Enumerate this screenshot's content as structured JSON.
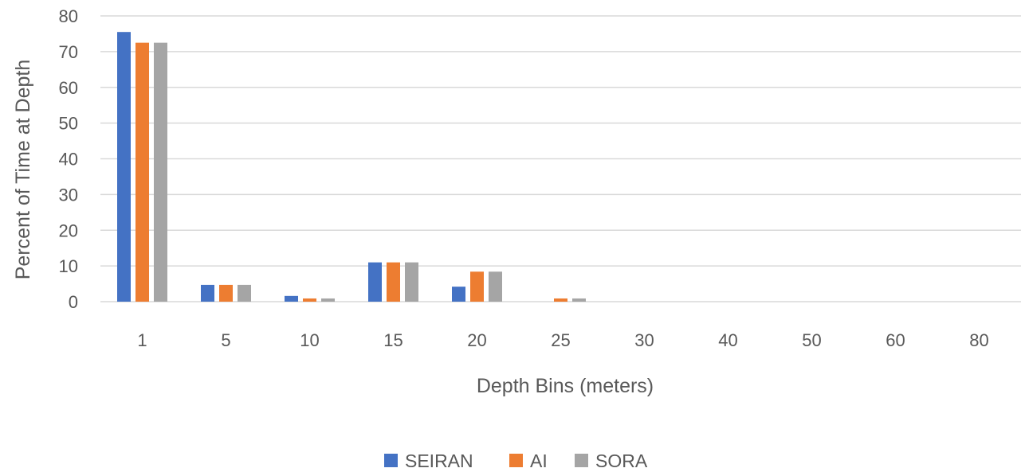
{
  "chart_data": {
    "type": "bar",
    "title": "",
    "xlabel": "Depth Bins (meters)",
    "ylabel": "Percent of Time at Depth",
    "ylim": [
      0,
      80
    ],
    "yticks": [
      0,
      10,
      20,
      30,
      40,
      50,
      60,
      70,
      80
    ],
    "categories": [
      "1",
      "5",
      "10",
      "15",
      "20",
      "25",
      "30",
      "40",
      "50",
      "60",
      "80"
    ],
    "series": [
      {
        "name": "SEIRAN",
        "color": "#4472C4",
        "values": [
          75.5,
          4.7,
          1.6,
          11.0,
          4.2,
          0,
          0,
          0,
          0,
          0,
          0
        ]
      },
      {
        "name": "AI",
        "color": "#ED7D31",
        "values": [
          72.5,
          4.7,
          0.9,
          11.0,
          8.4,
          0.9,
          0,
          0,
          0,
          0,
          0
        ]
      },
      {
        "name": "SORA",
        "color": "#A5A5A5",
        "values": [
          72.5,
          4.7,
          0.9,
          11.0,
          8.4,
          0.9,
          0,
          0,
          0,
          0,
          0
        ]
      }
    ],
    "grid": true,
    "legend": "bottom"
  }
}
